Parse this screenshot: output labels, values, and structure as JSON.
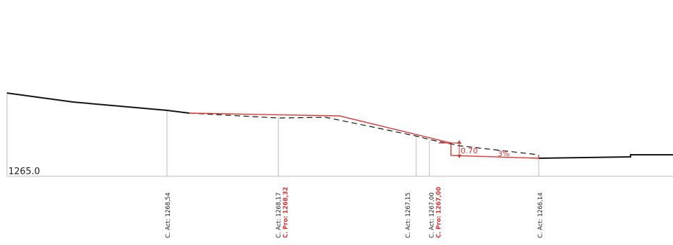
{
  "datum_label": "1265.0",
  "stations": [
    {
      "actual": "C. Act: 1268,54",
      "proposed": ""
    },
    {
      "actual": "C. Act: 1268,17",
      "proposed": "C. Pro: 1268,32"
    },
    {
      "actual": "C. Act: 1267,15",
      "proposed": ""
    },
    {
      "actual": "C. Act: 1267,00",
      "proposed": "C. Pro: 1267,00"
    },
    {
      "actual": "C. Act: 1266,14",
      "proposed": ""
    }
  ],
  "annotations": {
    "step_height": "0.70",
    "slope": "3%"
  },
  "colors": {
    "existing": "#111111",
    "proposed": "#e03030",
    "guide": "#bbbbbb",
    "label": "#222222"
  }
}
